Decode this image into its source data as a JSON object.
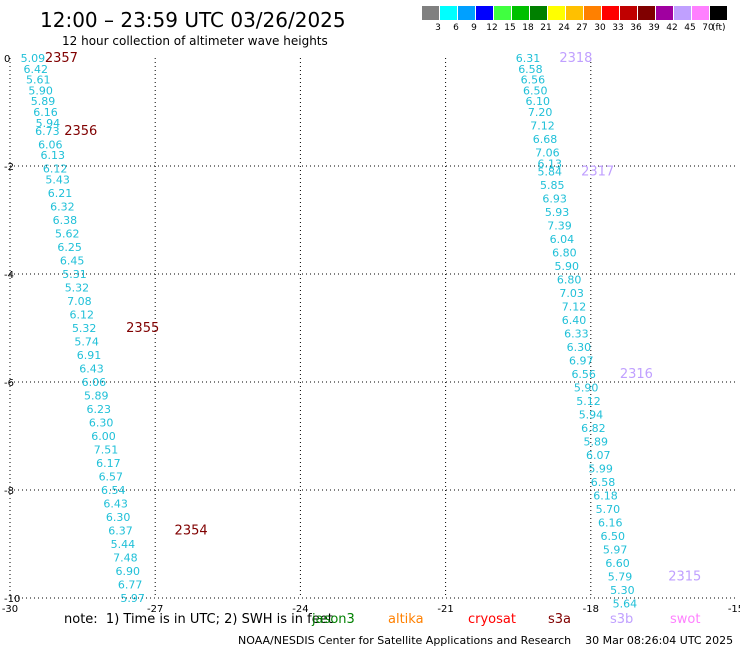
{
  "title": "12:00 – 23:59 UTC 03/26/2025",
  "subtitle": "12 hour collection of altimeter wave heights",
  "legend": {
    "items": [
      {
        "label": "3",
        "color": "#808080"
      },
      {
        "label": "6",
        "color": "#00ffff"
      },
      {
        "label": "9",
        "color": "#00a0ff"
      },
      {
        "label": "12",
        "color": "#0000ff"
      },
      {
        "label": "15",
        "color": "#40ff40"
      },
      {
        "label": "18",
        "color": "#00c000"
      },
      {
        "label": "21",
        "color": "#008000"
      },
      {
        "label": "24",
        "color": "#ffff00"
      },
      {
        "label": "27",
        "color": "#ffc000"
      },
      {
        "label": "30",
        "color": "#ff8000"
      },
      {
        "label": "33",
        "color": "#ff0000"
      },
      {
        "label": "36",
        "color": "#c00000"
      },
      {
        "label": "39",
        "color": "#800000"
      },
      {
        "label": "42",
        "color": "#a000a0"
      },
      {
        "label": "45",
        "color": "#c0a0ff"
      },
      {
        "label": "70",
        "color": "#ff80ff"
      },
      {
        "label": "",
        "color": "#000000"
      }
    ],
    "unit": "(ft)"
  },
  "axes": {
    "x_ticks": [
      "-30",
      "-27",
      "-24",
      "-21",
      "-18",
      "-15"
    ],
    "y_ticks": [
      "0",
      "-2",
      "-4",
      "-6",
      "-8",
      "-10"
    ],
    "lon_range": [
      -30,
      -15
    ],
    "lat_range": [
      -10,
      0
    ]
  },
  "tracks": [
    {
      "name": "left-track",
      "value_color": "#20c0d8",
      "points": [
        {
          "lon": -29.78,
          "lat": 0.0,
          "v": "5.09"
        },
        {
          "lon": -29.72,
          "lat": -0.2,
          "v": "6.42"
        },
        {
          "lon": -29.67,
          "lat": -0.4,
          "v": "5.61"
        },
        {
          "lon": -29.62,
          "lat": -0.6,
          "v": "5.90"
        },
        {
          "lon": -29.57,
          "lat": -0.8,
          "v": "5.89"
        },
        {
          "lon": -29.52,
          "lat": -1.0,
          "v": "6.16"
        },
        {
          "lon": -29.47,
          "lat": -1.2,
          "v": "5.94"
        },
        {
          "lon": -29.48,
          "lat": -1.35,
          "v": "6.73"
        },
        {
          "lon": -29.42,
          "lat": -1.6,
          "v": "6.06"
        },
        {
          "lon": -29.37,
          "lat": -1.8,
          "v": "6.13"
        },
        {
          "lon": -29.32,
          "lat": -2.05,
          "v": "6.12"
        },
        {
          "lon": -29.27,
          "lat": -2.25,
          "v": "5.43"
        },
        {
          "lon": -29.22,
          "lat": -2.5,
          "v": "6.21"
        },
        {
          "lon": -29.17,
          "lat": -2.75,
          "v": "6.32"
        },
        {
          "lon": -29.12,
          "lat": -3.0,
          "v": "6.38"
        },
        {
          "lon": -29.07,
          "lat": -3.25,
          "v": "5.62"
        },
        {
          "lon": -29.02,
          "lat": -3.5,
          "v": "6.25"
        },
        {
          "lon": -28.97,
          "lat": -3.75,
          "v": "6.45"
        },
        {
          "lon": -28.92,
          "lat": -4.0,
          "v": "5.31"
        },
        {
          "lon": -28.87,
          "lat": -4.25,
          "v": "5.32"
        },
        {
          "lon": -28.82,
          "lat": -4.5,
          "v": "7.08"
        },
        {
          "lon": -28.77,
          "lat": -4.75,
          "v": "6.12"
        },
        {
          "lon": -28.72,
          "lat": -5.0,
          "v": "5.32"
        },
        {
          "lon": -28.67,
          "lat": -5.25,
          "v": "5.74"
        },
        {
          "lon": -28.62,
          "lat": -5.5,
          "v": "6.91"
        },
        {
          "lon": -28.57,
          "lat": -5.75,
          "v": "6.43"
        },
        {
          "lon": -28.52,
          "lat": -6.0,
          "v": "6.06"
        },
        {
          "lon": -28.47,
          "lat": -6.25,
          "v": "5.89"
        },
        {
          "lon": -28.42,
          "lat": -6.5,
          "v": "6.23"
        },
        {
          "lon": -28.37,
          "lat": -6.75,
          "v": "6.30"
        },
        {
          "lon": -28.32,
          "lat": -7.0,
          "v": "6.00"
        },
        {
          "lon": -28.27,
          "lat": -7.25,
          "v": "7.51"
        },
        {
          "lon": -28.22,
          "lat": -7.5,
          "v": "6.17"
        },
        {
          "lon": -28.17,
          "lat": -7.75,
          "v": "6.57"
        },
        {
          "lon": -28.12,
          "lat": -8.0,
          "v": "6.54"
        },
        {
          "lon": -28.07,
          "lat": -8.25,
          "v": "6.43"
        },
        {
          "lon": -28.02,
          "lat": -8.5,
          "v": "6.30"
        },
        {
          "lon": -27.97,
          "lat": -8.75,
          "v": "6.37"
        },
        {
          "lon": -27.92,
          "lat": -9.0,
          "v": "5.44"
        },
        {
          "lon": -27.87,
          "lat": -9.25,
          "v": "7.48"
        },
        {
          "lon": -27.82,
          "lat": -9.5,
          "v": "6.90"
        },
        {
          "lon": -27.77,
          "lat": -9.75,
          "v": "6.77"
        },
        {
          "lon": -27.72,
          "lat": -10.0,
          "v": "5.97"
        }
      ],
      "times": [
        {
          "lon": -29.28,
          "lat": 0.0,
          "t": "2357",
          "color": "#800000"
        },
        {
          "lon": -28.88,
          "lat": -1.35,
          "t": "2356",
          "color": "#800000"
        },
        {
          "lon": -27.6,
          "lat": -5.0,
          "t": "2355",
          "color": "#800000"
        },
        {
          "lon": -26.6,
          "lat": -8.75,
          "t": "2354",
          "color": "#800000"
        }
      ]
    },
    {
      "name": "right-track",
      "value_color": "#20c0d8",
      "points": [
        {
          "lon": -19.55,
          "lat": 0.0,
          "v": "6.31"
        },
        {
          "lon": -19.5,
          "lat": -0.2,
          "v": "6.58"
        },
        {
          "lon": -19.45,
          "lat": -0.4,
          "v": "6.56"
        },
        {
          "lon": -19.4,
          "lat": -0.6,
          "v": "6.50"
        },
        {
          "lon": -19.35,
          "lat": -0.8,
          "v": "6.10"
        },
        {
          "lon": -19.3,
          "lat": -1.0,
          "v": "7.20"
        },
        {
          "lon": -19.25,
          "lat": -1.25,
          "v": "7.12"
        },
        {
          "lon": -19.2,
          "lat": -1.5,
          "v": "6.68"
        },
        {
          "lon": -19.15,
          "lat": -1.75,
          "v": "7.06"
        },
        {
          "lon": -19.1,
          "lat": -1.95,
          "v": "6.13"
        },
        {
          "lon": -19.1,
          "lat": -2.1,
          "v": "5.84"
        },
        {
          "lon": -19.05,
          "lat": -2.35,
          "v": "5.85"
        },
        {
          "lon": -19.0,
          "lat": -2.6,
          "v": "6.93"
        },
        {
          "lon": -18.95,
          "lat": -2.85,
          "v": "5.93"
        },
        {
          "lon": -18.9,
          "lat": -3.1,
          "v": "7.39"
        },
        {
          "lon": -18.85,
          "lat": -3.35,
          "v": "6.04"
        },
        {
          "lon": -18.8,
          "lat": -3.6,
          "v": "6.80"
        },
        {
          "lon": -18.75,
          "lat": -3.85,
          "v": "5.90"
        },
        {
          "lon": -18.7,
          "lat": -4.1,
          "v": "6.80"
        },
        {
          "lon": -18.65,
          "lat": -4.35,
          "v": "7.03"
        },
        {
          "lon": -18.6,
          "lat": -4.6,
          "v": "7.12"
        },
        {
          "lon": -18.6,
          "lat": -4.85,
          "v": "6.40"
        },
        {
          "lon": -18.55,
          "lat": -5.1,
          "v": "6.33"
        },
        {
          "lon": -18.5,
          "lat": -5.35,
          "v": "6.30"
        },
        {
          "lon": -18.45,
          "lat": -5.6,
          "v": "6.97"
        },
        {
          "lon": -18.4,
          "lat": -5.85,
          "v": "6.56"
        },
        {
          "lon": -18.35,
          "lat": -6.1,
          "v": "5.90"
        },
        {
          "lon": -18.3,
          "lat": -6.35,
          "v": "5.12"
        },
        {
          "lon": -18.25,
          "lat": -6.6,
          "v": "5.94"
        },
        {
          "lon": -18.2,
          "lat": -6.85,
          "v": "6.82"
        },
        {
          "lon": -18.15,
          "lat": -7.1,
          "v": "5.89"
        },
        {
          "lon": -18.1,
          "lat": -7.35,
          "v": "6.07"
        },
        {
          "lon": -18.05,
          "lat": -7.6,
          "v": "5.99"
        },
        {
          "lon": -18.0,
          "lat": -7.85,
          "v": "6.58"
        },
        {
          "lon": -17.95,
          "lat": -8.1,
          "v": "6.18"
        },
        {
          "lon": -17.9,
          "lat": -8.35,
          "v": "5.70"
        },
        {
          "lon": -17.85,
          "lat": -8.6,
          "v": "6.16"
        },
        {
          "lon": -17.8,
          "lat": -8.85,
          "v": "6.50"
        },
        {
          "lon": -17.75,
          "lat": -9.1,
          "v": "5.97"
        },
        {
          "lon": -17.7,
          "lat": -9.35,
          "v": "6.60"
        },
        {
          "lon": -17.65,
          "lat": -9.6,
          "v": "5.79"
        },
        {
          "lon": -17.6,
          "lat": -9.85,
          "v": "5.30"
        },
        {
          "lon": -17.55,
          "lat": -10.1,
          "v": "5.64"
        }
      ],
      "times": [
        {
          "lon": -18.65,
          "lat": 0.0,
          "t": "2318",
          "color": "#c0a0ff"
        },
        {
          "lon": -18.2,
          "lat": -2.1,
          "t": "2317",
          "color": "#c0a0ff"
        },
        {
          "lon": -17.4,
          "lat": -5.85,
          "t": "2316",
          "color": "#c0a0ff"
        },
        {
          "lon": -16.4,
          "lat": -9.6,
          "t": "2315",
          "color": "#c0a0ff"
        }
      ]
    }
  ],
  "footer": {
    "note": "note:  1) Time is in UTC; 2) SWH is in feet",
    "satellites": [
      {
        "name": "jason3",
        "color": "#008000"
      },
      {
        "name": "altika",
        "color": "#ff8000"
      },
      {
        "name": "cryosat",
        "color": "#ff0000"
      },
      {
        "name": "s3a",
        "color": "#800000"
      },
      {
        "name": "s3b",
        "color": "#c0a0ff"
      },
      {
        "name": "swot",
        "color": "#ff80ff"
      }
    ],
    "credit": "NOAA/NESDIS Center for Satellite Applications and Research    30 Mar 08:26:04 UTC 2025"
  }
}
